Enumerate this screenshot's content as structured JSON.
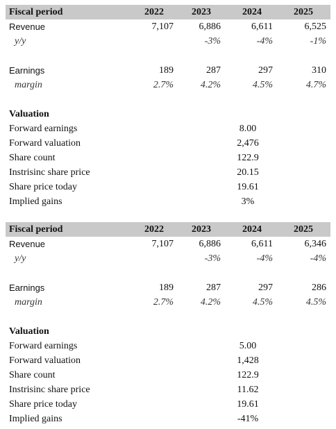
{
  "tables": [
    {
      "header": [
        "Fiscal period",
        "2022",
        "2023",
        "2024",
        "2025"
      ],
      "revenue": {
        "label": "Revenue",
        "values": [
          "7,107",
          "6,886",
          "6,611",
          "6,525"
        ]
      },
      "growth": {
        "label": "y/y",
        "values": [
          "-3%",
          "-4%",
          "-1%"
        ]
      },
      "earnings": {
        "label": "Earnings",
        "values": [
          "189",
          "287",
          "297",
          "310"
        ]
      },
      "margin": {
        "label": "margin",
        "values": [
          "2.7%",
          "4.2%",
          "4.5%",
          "4.7%"
        ]
      },
      "valuation": {
        "title": "Valuation",
        "rows": [
          {
            "label": "Forward earnings",
            "value": "8.00"
          },
          {
            "label": "Forward valuation",
            "value": "2,476"
          },
          {
            "label": "Share count",
            "value": "122.9"
          },
          {
            "label": "Instrisinc share price",
            "value": "20.15"
          },
          {
            "label": "Share price today",
            "value": "19.61"
          },
          {
            "label": "Implied gains",
            "value": "3%"
          }
        ]
      }
    },
    {
      "header": [
        "Fiscal period",
        "2022",
        "2023",
        "2024",
        "2025"
      ],
      "revenue": {
        "label": "Revenue",
        "values": [
          "7,107",
          "6,886",
          "6,611",
          "6,346"
        ]
      },
      "growth": {
        "label": "y/y",
        "values": [
          "-3%",
          "-4%",
          "-4%"
        ]
      },
      "earnings": {
        "label": "Earnings",
        "values": [
          "189",
          "287",
          "297",
          "286"
        ]
      },
      "margin": {
        "label": "margin",
        "values": [
          "2.7%",
          "4.2%",
          "4.5%",
          "4.5%"
        ]
      },
      "valuation": {
        "title": "Valuation",
        "rows": [
          {
            "label": "Forward earnings",
            "value": "5.00"
          },
          {
            "label": "Forward valuation",
            "value": "1,428"
          },
          {
            "label": "Share count",
            "value": "122.9"
          },
          {
            "label": "Instrisinc share price",
            "value": "11.62"
          },
          {
            "label": "Share price today",
            "value": "19.61"
          },
          {
            "label": "Implied gains",
            "value": "-41%"
          }
        ]
      }
    }
  ]
}
